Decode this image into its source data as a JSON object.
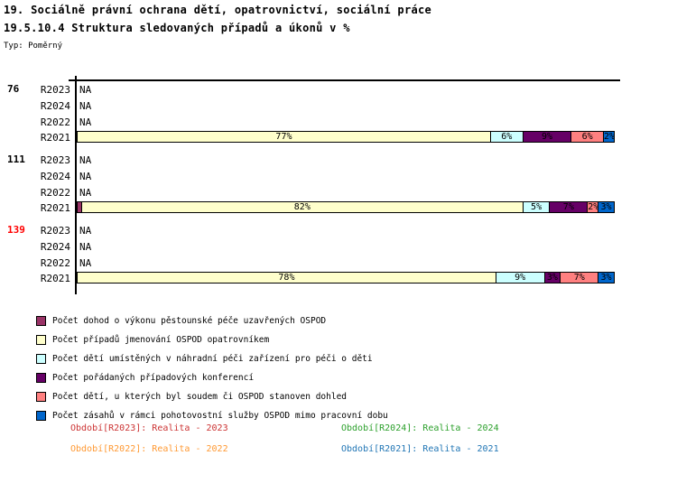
{
  "page": {
    "title_line1": "19. Sociálně právní ochrana dětí, opatrovnictví, sociální práce",
    "title_line2": "19.5.10.4 Struktura sledovaných případů a úkonů v %",
    "type_label": "Typ: Poměrný"
  },
  "chart_data": {
    "type": "bar",
    "variant": "horizontal-stacked",
    "unit": "%",
    "x_range": [
      0,
      100
    ],
    "na_text": "NA",
    "series": [
      {
        "name": "Počet dohod o výkonu pěstounské péče uzavřených OSPOD",
        "color": "#993366"
      },
      {
        "name": "Počet případů jmenování OSPOD opatrovníkem",
        "color": "#FFFFCC"
      },
      {
        "name": "Počet dětí umístěných v náhradní péči zařízení pro péči o děti",
        "color": "#CCFFFF"
      },
      {
        "name": "Počet pořádaných případových konferencí",
        "color": "#660066"
      },
      {
        "name": "Počet dětí, u kterých byl soudem či OSPOD stanoven dohled",
        "color": "#FF8080"
      },
      {
        "name": "Počet zásahů v rámci pohotovostní služby OSPOD mimo pracovní dobu",
        "color": "#0066CC"
      }
    ],
    "groups": [
      {
        "group_label": "76",
        "group_label_color": "#000000",
        "rows": [
          {
            "label": "R2023",
            "na": "NA"
          },
          {
            "label": "R2024",
            "na": "NA"
          },
          {
            "label": "R2022",
            "na": "NA"
          },
          {
            "label": "R2021",
            "segments": [
              {
                "series": 1,
                "pct": 77,
                "text": "77%"
              },
              {
                "series": 2,
                "pct": 6,
                "text": "6%"
              },
              {
                "series": 3,
                "pct": 9,
                "text": "9%"
              },
              {
                "series": 4,
                "pct": 6,
                "text": "6%"
              },
              {
                "series": 5,
                "pct": 2,
                "text": "2%"
              }
            ]
          }
        ]
      },
      {
        "group_label": "111",
        "group_label_color": "#000000",
        "rows": [
          {
            "label": "R2023",
            "na": "NA"
          },
          {
            "label": "R2024",
            "na": "NA"
          },
          {
            "label": "R2022",
            "na": "NA"
          },
          {
            "label": "R2021",
            "segments": [
              {
                "series": 0,
                "pct": 1,
                "text": ""
              },
              {
                "series": 1,
                "pct": 82,
                "text": "82%"
              },
              {
                "series": 2,
                "pct": 5,
                "text": "5%"
              },
              {
                "series": 3,
                "pct": 7,
                "text": "7%"
              },
              {
                "series": 4,
                "pct": 2,
                "text": "2%"
              },
              {
                "series": 5,
                "pct": 3,
                "text": "3%"
              }
            ]
          }
        ]
      },
      {
        "group_label": "139",
        "group_label_color": "#FF0000",
        "rows": [
          {
            "label": "R2023",
            "na": "NA"
          },
          {
            "label": "R2024",
            "na": "NA"
          },
          {
            "label": "R2022",
            "na": "NA"
          },
          {
            "label": "R2021",
            "segments": [
              {
                "series": 1,
                "pct": 78,
                "text": "78%"
              },
              {
                "series": 2,
                "pct": 9,
                "text": "9%"
              },
              {
                "series": 3,
                "pct": 3,
                "text": "3%"
              },
              {
                "series": 4,
                "pct": 7,
                "text": "7%"
              },
              {
                "series": 5,
                "pct": 3,
                "text": "3%"
              }
            ]
          }
        ]
      }
    ]
  },
  "legend": {
    "items": [
      {
        "label": "Počet dohod o výkonu pěstounské péče uzavřených OSPOD",
        "color": "#993366"
      },
      {
        "label": "Počet případů jmenování OSPOD opatrovníkem",
        "color": "#FFFFCC"
      },
      {
        "label": "Počet dětí umístěných v náhradní péči zařízení pro péči o děti",
        "color": "#CCFFFF"
      },
      {
        "label": "Počet pořádaných případových konferencí",
        "color": "#660066"
      },
      {
        "label": "Počet dětí, u kterých byl soudem či OSPOD stanoven dohled",
        "color": "#FF8080"
      },
      {
        "label": "Počet zásahů v rámci pohotovostní služby OSPOD mimo pracovní dobu",
        "color": "#0066CC"
      }
    ]
  },
  "footer": {
    "items": [
      {
        "text": "Období[R2023]: Realita - 2023",
        "color": "#CC3333"
      },
      {
        "text": "Období[R2024]: Realita - 2024",
        "color": "#2CA02C"
      },
      {
        "text": "Období[R2022]: Realita - 2022",
        "color": "#FF9933"
      },
      {
        "text": "Období[R2021]: Realita - 2021",
        "color": "#2176B5"
      }
    ]
  }
}
